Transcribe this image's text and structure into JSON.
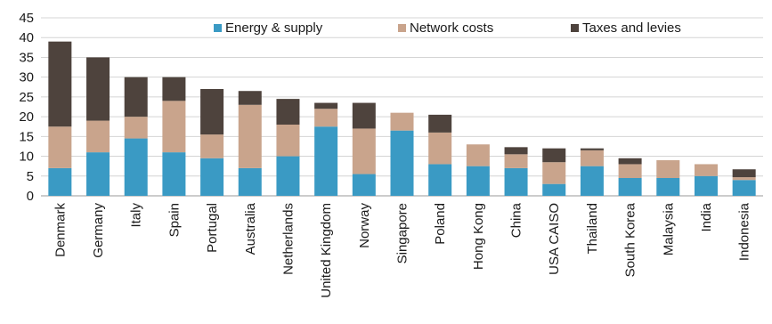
{
  "chart_data": {
    "type": "bar",
    "stacked": true,
    "categories": [
      "Denmark",
      "Germany",
      "Italy",
      "Spain",
      "Portugal",
      "Australia",
      "Netherlands",
      "United Kingdom",
      "Norway",
      "Singapore",
      "Poland",
      "Hong Kong",
      "China",
      "USA CAISO",
      "Thailand",
      "South Korea",
      "Malaysia",
      "India",
      "Indonesia"
    ],
    "series": [
      {
        "name": "Energy & supply",
        "color": "#3a9ac4",
        "values": [
          7,
          11,
          14.5,
          11,
          9.5,
          7,
          10,
          17.5,
          5.5,
          16.5,
          8,
          7.5,
          7,
          3,
          7.5,
          4.5,
          4.5,
          5,
          4
        ]
      },
      {
        "name": "Network costs",
        "color": "#c9a48c",
        "values": [
          10.5,
          8,
          5.5,
          13,
          6,
          16,
          8,
          4.5,
          11.5,
          4.5,
          8,
          5.5,
          3.5,
          5.5,
          4,
          3.5,
          4.5,
          3,
          0.7
        ]
      },
      {
        "name": "Taxes and levies",
        "color": "#4e433d",
        "values": [
          21.5,
          16,
          10,
          6,
          11.5,
          3.5,
          6.5,
          1.5,
          6.5,
          0,
          4.5,
          0,
          1.8,
          3.5,
          0.5,
          1.5,
          0,
          0,
          2
        ]
      }
    ],
    "ylim": [
      0,
      45
    ],
    "yticks": [
      "0",
      "5",
      "10",
      "15",
      "20",
      "25",
      "30",
      "35",
      "40",
      "45"
    ],
    "grid": true,
    "legend_position": "top"
  }
}
